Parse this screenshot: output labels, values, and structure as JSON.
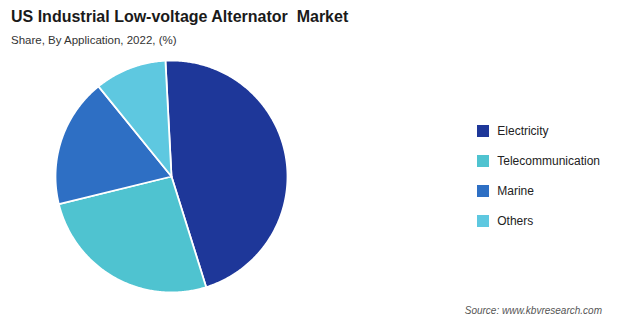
{
  "chart_data": {
    "type": "pie",
    "title": "US Industrial Low-voltage Alternator  Market",
    "subtitle": "Share, By Application, 2022, (%)",
    "source": "Source: www.kbvresearch.com",
    "categories": [
      "Electricity",
      "Telecommunication",
      "Marine",
      "Others"
    ],
    "values": [
      46,
      26,
      18,
      10
    ],
    "colors": [
      "#1e3799",
      "#4fc3d0",
      "#2e6fc4",
      "#5ec8e0"
    ],
    "legend": "right"
  }
}
